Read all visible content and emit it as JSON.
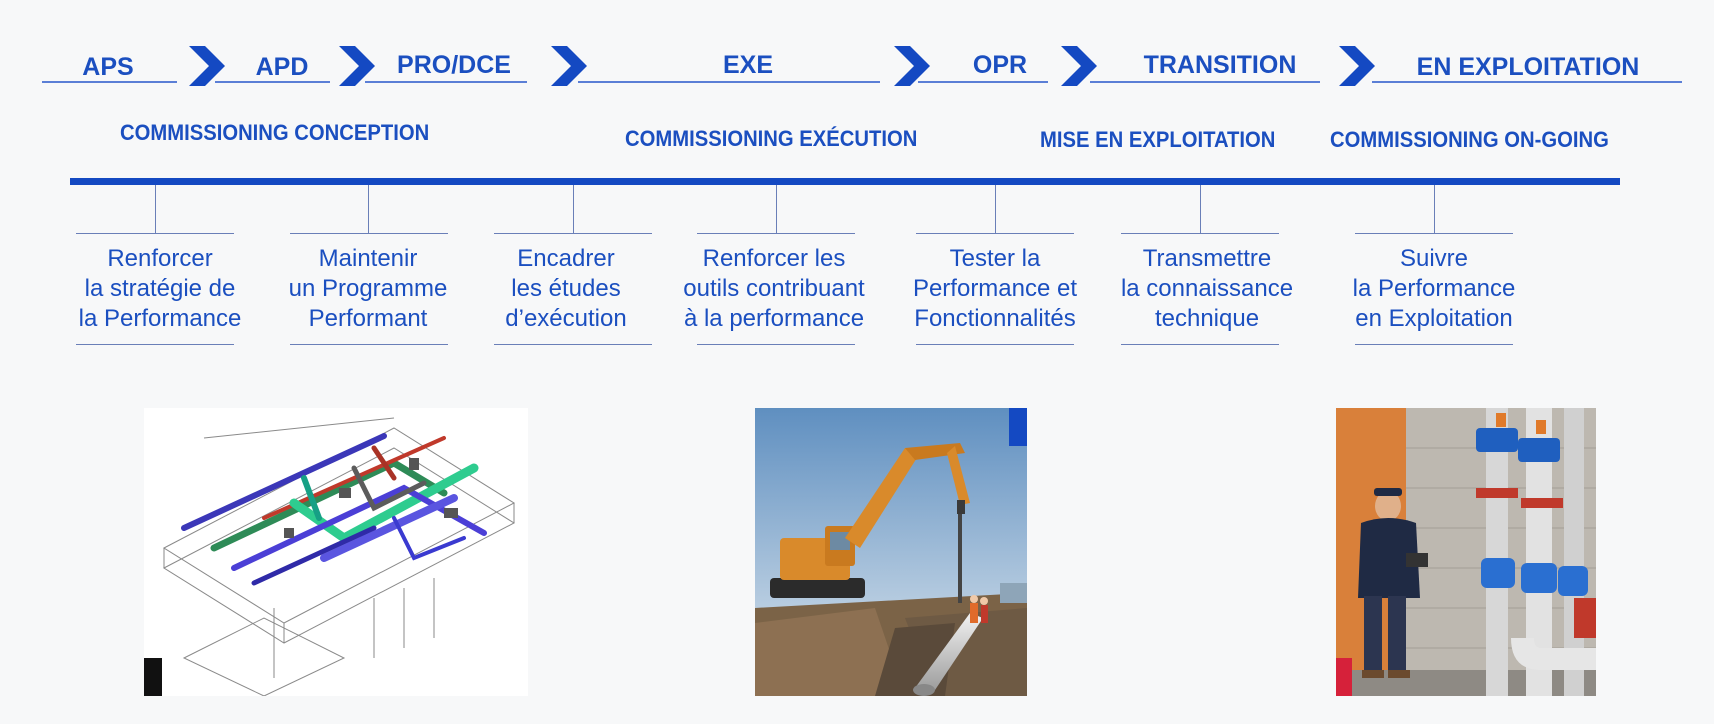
{
  "phases": [
    "APS",
    "APD",
    "PRO/DCE",
    "EXE",
    "OPR",
    "TRANSITION",
    "EN EXPLOITATION"
  ],
  "commissioning": [
    "COMMISSIONING  CONCEPTION",
    "COMMISSIONING EXÉCUTION",
    "MISE EN  EXPLOITATION",
    "COMMISSIONING ON-GOING"
  ],
  "goals": [
    [
      "Renforcer",
      "la stratégie de",
      "la Performance"
    ],
    [
      "Maintenir",
      "un Programme",
      "Performant"
    ],
    [
      "Encadrer",
      "les études",
      "d’exécution"
    ],
    [
      "Renforcer les",
      "outils contribuant",
      "à la performance"
    ],
    [
      "Tester la",
      "Performance et",
      "Fonctionnalités"
    ],
    [
      "Transmettre",
      "la connaissance",
      "technique"
    ],
    [
      "Suivre",
      "la Performance",
      "en Exploitation"
    ]
  ],
  "colors": {
    "primary": "#1449c2",
    "text": "#1b4fc0"
  },
  "images": [
    "bim-piping-isometric-drawing",
    "excavator-pipe-laying-site",
    "technician-plant-room-pipes"
  ]
}
